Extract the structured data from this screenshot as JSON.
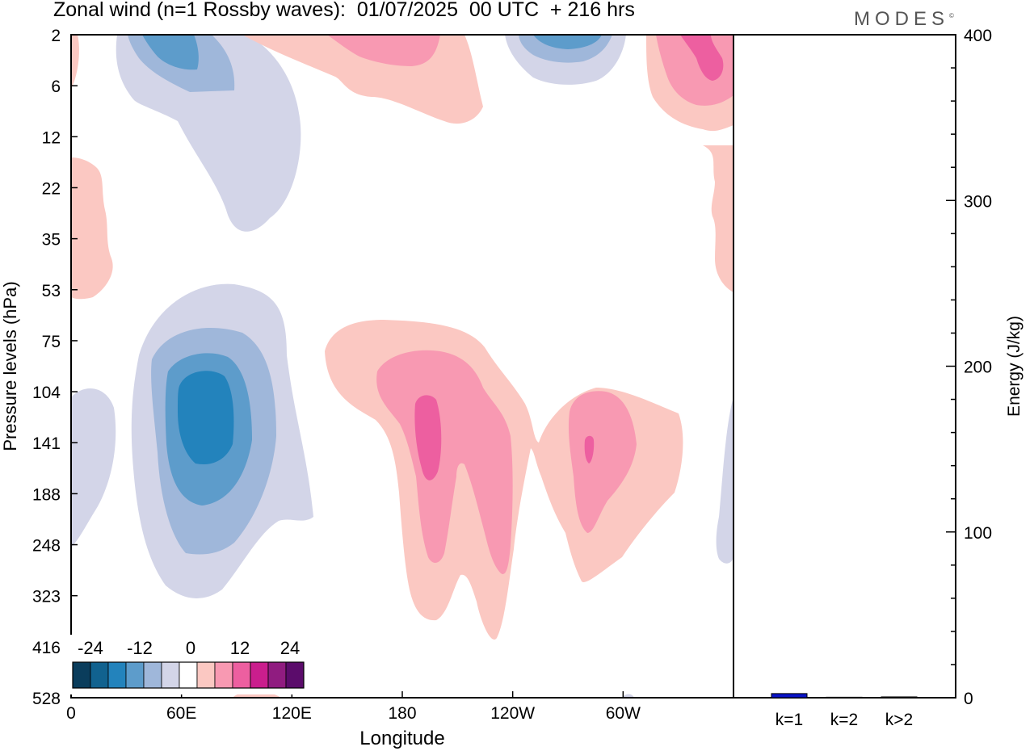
{
  "title": "Zonal wind (n=1 Rossby waves):  01/07/2025  00 UTC  + 216 hrs",
  "brand": "MODES",
  "brand_mark": "©",
  "chart_data": [
    {
      "type": "heatmap",
      "xlabel": "Longitude",
      "ylabel": "Pressure levels (hPa)",
      "x_ticks": [
        "0",
        "60E",
        "120E",
        "180",
        "120W",
        "60W"
      ],
      "x_tick_degrees": [
        0,
        60,
        120,
        180,
        240,
        300
      ],
      "xlim": [
        0,
        360
      ],
      "y_ticks": [
        "2",
        "6",
        "12",
        "22",
        "35",
        "53",
        "75",
        "104",
        "141",
        "188",
        "248",
        "323",
        "416",
        "528"
      ],
      "y_scale": "log",
      "colorbar": {
        "labels": [
          "-24",
          "-12",
          "0",
          "12",
          "24"
        ],
        "colors": [
          "#0a3d5c",
          "#11628f",
          "#2383bc",
          "#5d9ccb",
          "#9fb7da",
          "#d3d5e8",
          "#ffffff",
          "#fbc8c2",
          "#f899b2",
          "#ed5fa0",
          "#ca1e8d",
          "#901c80",
          "#5b0c6b"
        ]
      },
      "features": [
        {
          "sign": "negative",
          "level": -18,
          "lon": 70,
          "p": 141
        },
        {
          "sign": "negative",
          "level": -12,
          "lon": 60,
          "p": 3
        },
        {
          "sign": "negative",
          "level": -12,
          "lon": 270,
          "p": 3
        },
        {
          "sign": "positive",
          "level": 12,
          "lon": 195,
          "p": 141
        },
        {
          "sign": "positive",
          "level": 12,
          "lon": 283,
          "p": 141
        },
        {
          "sign": "positive",
          "level": 12,
          "lon": 347,
          "p": 4
        }
      ]
    },
    {
      "type": "bar",
      "categories": [
        "k=1",
        "k=2",
        "k>2"
      ],
      "values": [
        2.5,
        0.3,
        0.5
      ],
      "ylabel": "Energy (J/kg)",
      "ylim": [
        0,
        400
      ],
      "y_ticks": [
        "0",
        "100",
        "200",
        "300",
        "400"
      ],
      "bar_color": "#0a14c8"
    }
  ]
}
